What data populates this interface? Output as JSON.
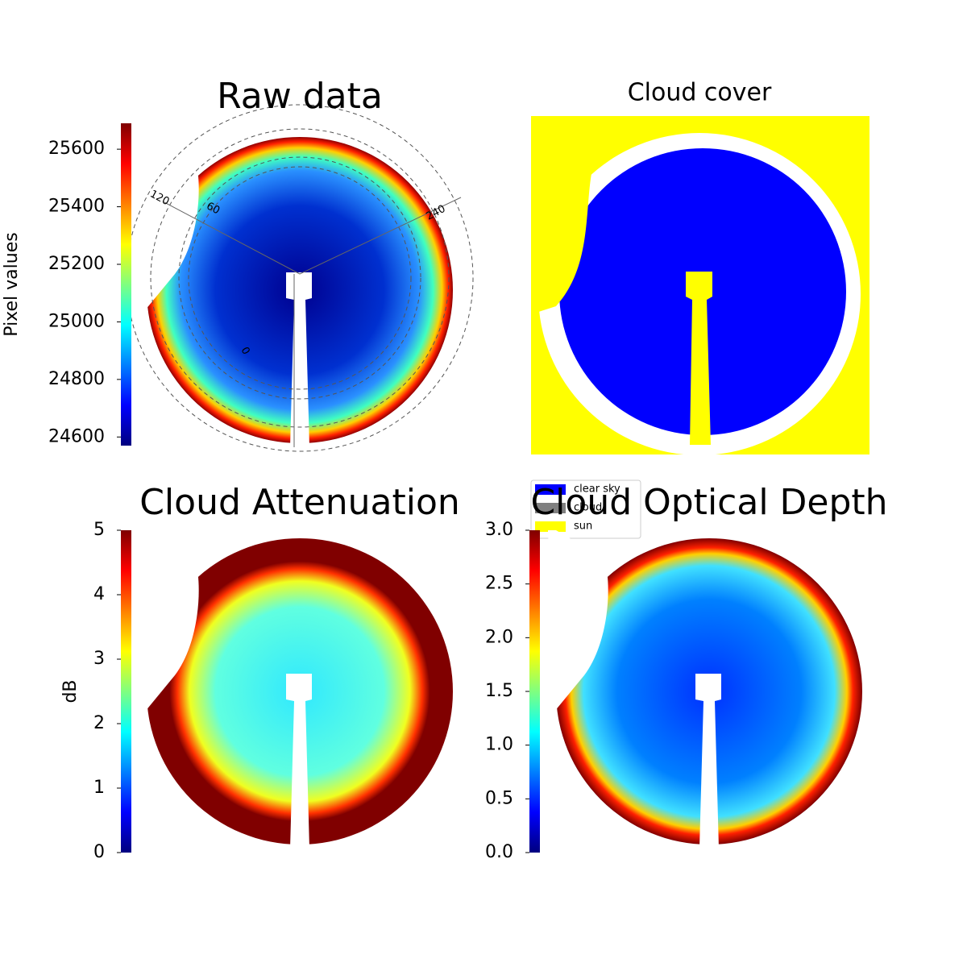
{
  "chart_data": [
    {
      "type": "image",
      "title": "Raw data",
      "ylabel": "Pixel values",
      "colormap": "jet",
      "ylim": [
        24570,
        25690
      ],
      "yticks": [
        24600,
        24800,
        25000,
        25200,
        25400,
        25600
      ],
      "annotations": [
        "120",
        "60",
        "240",
        "0"
      ]
    },
    {
      "type": "image",
      "title": "Cloud cover",
      "series": [
        {
          "name": "clear sky",
          "color": "#0000ff"
        },
        {
          "name": "cloud",
          "color": "#808080"
        },
        {
          "name": "sun",
          "color": "#ffff00"
        }
      ]
    },
    {
      "type": "image",
      "title": "Cloud Attenuation",
      "ylabel": "dB",
      "colormap": "jet",
      "ylim": [
        0,
        5
      ],
      "yticks": [
        0,
        1,
        2,
        3,
        4,
        5
      ]
    },
    {
      "type": "image",
      "title": "Cloud Optical Depth",
      "colormap": "jet",
      "ylim": [
        0,
        3
      ],
      "yticks": [
        {
          "value": 0,
          "label": "0.0"
        },
        {
          "value": 0.5,
          "label": "0.5"
        },
        {
          "value": 1,
          "label": "1.0"
        },
        {
          "value": 1.5,
          "label": "1.5"
        },
        {
          "value": 2,
          "label": "2.0"
        },
        {
          "value": 2.5,
          "label": "2.5"
        },
        {
          "value": 3,
          "label": "3.0"
        }
      ]
    }
  ]
}
